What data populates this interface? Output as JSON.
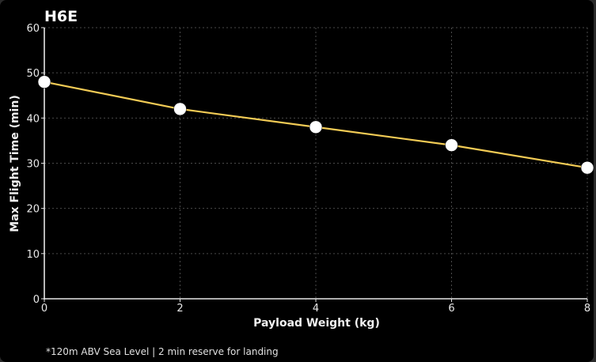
{
  "chart_data": {
    "type": "line",
    "title": "H6E",
    "xlabel": "Payload Weight (kg)",
    "ylabel": "Max Flight Time (min)",
    "xlim": [
      0,
      8
    ],
    "ylim": [
      0,
      60
    ],
    "xticks": [
      0,
      2,
      4,
      6,
      8
    ],
    "yticks": [
      0,
      10,
      20,
      30,
      40,
      50,
      60
    ],
    "grid": true,
    "series": [
      {
        "x": [
          0,
          2,
          4,
          6,
          8
        ],
        "y": [
          48,
          42,
          38,
          34,
          29
        ]
      }
    ],
    "line_color": "#f2cb55",
    "marker_color": "#ffffff",
    "footnote": "*120m ABV Sea Level | 2 min reserve for landing"
  }
}
